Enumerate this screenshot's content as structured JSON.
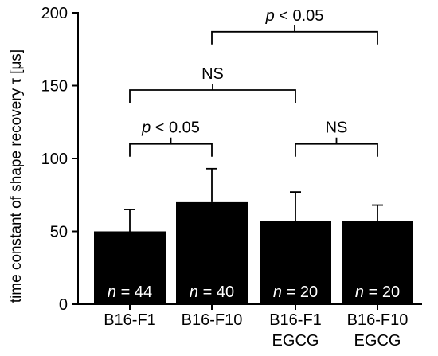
{
  "chart_data": {
    "type": "bar",
    "ylabel": "time constant of shape recovery τ [μs]",
    "ylim": [
      0,
      200
    ],
    "yticks": [
      0,
      50,
      100,
      150,
      200
    ],
    "categories": [
      {
        "line1": "B16-F1",
        "line2": ""
      },
      {
        "line1": "B16-F10",
        "line2": ""
      },
      {
        "line1": "B16-F1",
        "line2": "EGCG"
      },
      {
        "line1": "B16-F10",
        "line2": "EGCG"
      }
    ],
    "values": [
      50,
      70,
      57,
      57
    ],
    "errors": [
      15,
      23,
      20,
      11
    ],
    "bar_labels": [
      {
        "italic": "n",
        "rest": " = 44"
      },
      {
        "italic": "n",
        "rest": " = 40"
      },
      {
        "italic": "n",
        "rest": " = 20"
      },
      {
        "italic": "n",
        "rest": " = 20"
      }
    ],
    "comparisons": [
      {
        "from": 0,
        "to": 1,
        "y": 110,
        "italic": "p",
        "rest": " < 0.05"
      },
      {
        "from": 0,
        "to": 2,
        "y": 147,
        "italic": "",
        "rest": "NS"
      },
      {
        "from": 1,
        "to": 3,
        "y": 187,
        "italic": "p",
        "rest": " < 0.05"
      },
      {
        "from": 2,
        "to": 3,
        "y": 110,
        "italic": "",
        "rest": "NS"
      }
    ]
  }
}
